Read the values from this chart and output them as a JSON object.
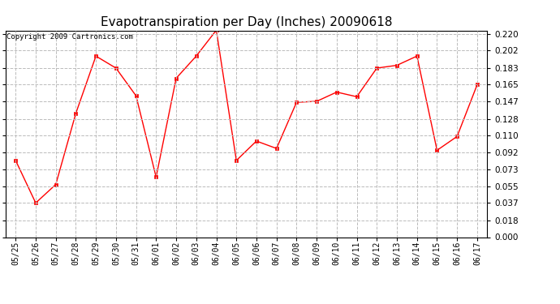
{
  "title": "Evapotranspiration per Day (Inches) 20090618",
  "copyright": "Copyright 2009 Cartronics.com",
  "dates": [
    "05/25",
    "05/26",
    "05/27",
    "05/28",
    "05/29",
    "05/30",
    "05/31",
    "06/01",
    "06/02",
    "06/03",
    "06/04",
    "06/05",
    "06/06",
    "06/07",
    "06/08",
    "06/09",
    "06/10",
    "06/11",
    "06/12",
    "06/13",
    "06/14",
    "06/15",
    "06/16",
    "06/17"
  ],
  "values": [
    0.083,
    0.037,
    0.057,
    0.134,
    0.196,
    0.183,
    0.153,
    0.065,
    0.172,
    0.196,
    0.224,
    0.083,
    0.104,
    0.096,
    0.146,
    0.147,
    0.157,
    0.152,
    0.183,
    0.186,
    0.196,
    0.094,
    0.109,
    0.165
  ],
  "ylim": [
    0.0,
    0.2238
  ],
  "yticks": [
    0.0,
    0.018,
    0.037,
    0.055,
    0.073,
    0.092,
    0.11,
    0.128,
    0.147,
    0.165,
    0.183,
    0.202,
    0.22
  ],
  "line_color": "#FF0000",
  "marker": "s",
  "marker_size": 2.5,
  "bg_color": "#FFFFFF",
  "grid_color": "#BBBBBB",
  "title_fontsize": 11,
  "copyright_fontsize": 6.5,
  "tick_fontsize": 7.5,
  "xtick_fontsize": 7.0
}
